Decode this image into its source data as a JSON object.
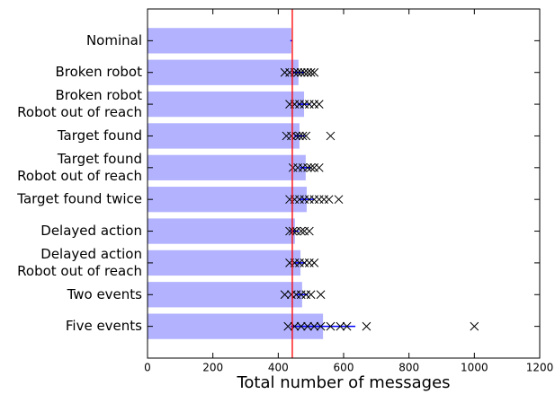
{
  "chart_data": {
    "type": "bar",
    "xlabel": "Total number of messages",
    "categories": [
      [
        "Nominal"
      ],
      [
        "Broken robot"
      ],
      [
        "Broken robot",
        "Robot out of reach"
      ],
      [
        "Target found"
      ],
      [
        "Target found",
        "Robot out of reach"
      ],
      [
        "Target found twice"
      ],
      [
        "Delayed action"
      ],
      [
        "Delayed action",
        "Robot out of reach"
      ],
      [
        "Two events"
      ],
      [
        "Five events"
      ]
    ],
    "values": [
      440,
      462,
      479,
      465,
      484,
      487,
      451,
      468,
      473,
      537
    ],
    "errors": [
      3,
      18,
      20,
      16,
      18,
      22,
      12,
      16,
      18,
      99
    ],
    "outliers": [
      [],
      [
        420,
        435,
        450,
        460,
        470,
        480,
        490,
        500,
        510
      ],
      [
        435,
        450,
        465,
        480,
        495,
        510,
        525
      ],
      [
        425,
        440,
        455,
        465,
        475,
        485,
        560
      ],
      [
        445,
        460,
        475,
        490,
        500,
        510,
        525
      ],
      [
        435,
        450,
        465,
        480,
        495,
        510,
        525,
        540,
        555,
        585
      ],
      [
        435,
        445,
        455,
        470,
        480,
        495
      ],
      [
        435,
        450,
        465,
        480,
        495,
        510
      ],
      [
        420,
        440,
        455,
        470,
        485,
        500,
        530
      ],
      [
        430,
        450,
        470,
        490,
        510,
        530,
        560,
        590,
        610,
        670,
        1000
      ]
    ],
    "reference_line": 443,
    "color": "#aaaaff",
    "error_color": "#0000ff",
    "marker_color": "#000000",
    "reference_color": "#ff0000",
    "xlim": [
      0,
      1200
    ],
    "xticks": [
      0,
      200,
      400,
      600,
      800,
      1000,
      1200
    ]
  }
}
